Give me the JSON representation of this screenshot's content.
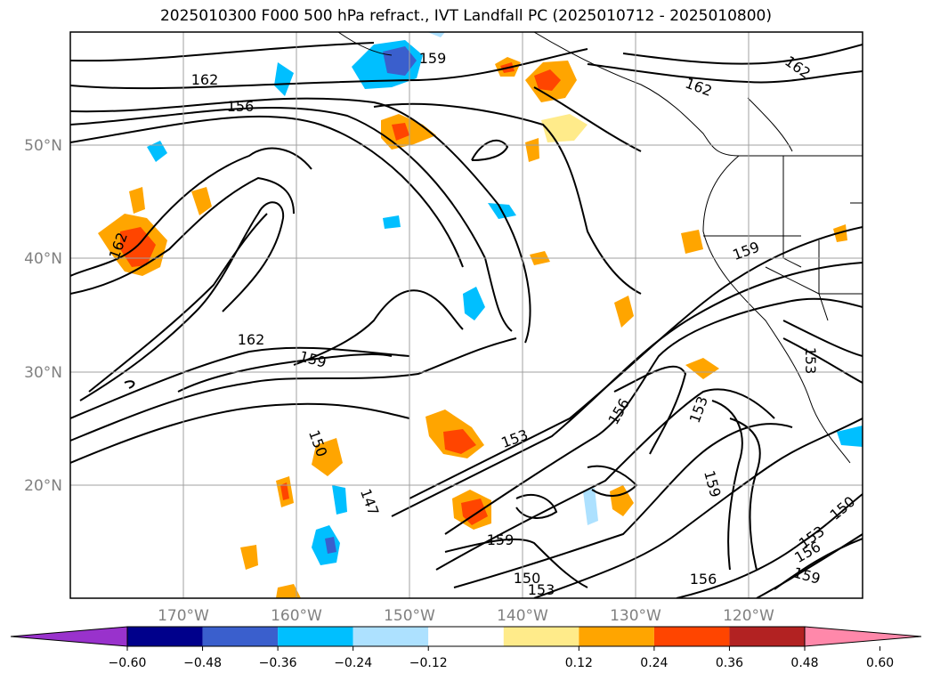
{
  "title": "2025010300 F000 500 hPa refract., IVT Landfall PC (2025010712 - 2025010800)",
  "latitude_labels": [
    "50°N",
    "40°N",
    "30°N",
    "20°N"
  ],
  "longitude_labels": [
    "170°W",
    "160°W",
    "150°W",
    "140°W",
    "130°W",
    "120°W"
  ],
  "contour_labels": [
    "162",
    "156",
    "159",
    "162",
    "162",
    "162",
    "159",
    "153",
    "159",
    "156",
    "153",
    "159",
    "150",
    "147",
    "153",
    "159",
    "150",
    "153",
    "156",
    "156",
    "153",
    "150",
    "159",
    "159",
    "156",
    "159",
    "153"
  ],
  "colorbar": {
    "ticks": [
      "−0.60",
      "−0.48",
      "−0.36",
      "−0.24",
      "−0.12",
      "0.12",
      "0.24",
      "0.36",
      "0.48",
      "0.60"
    ],
    "colors": [
      "#9932CC",
      "#00008B",
      "#3A5FCD",
      "#00BFFF",
      "#ADE1FF",
      "#FFFFFF",
      "#FFEB8A",
      "#FFA500",
      "#FF4500",
      "#B22222",
      "#FF88AA"
    ]
  }
}
